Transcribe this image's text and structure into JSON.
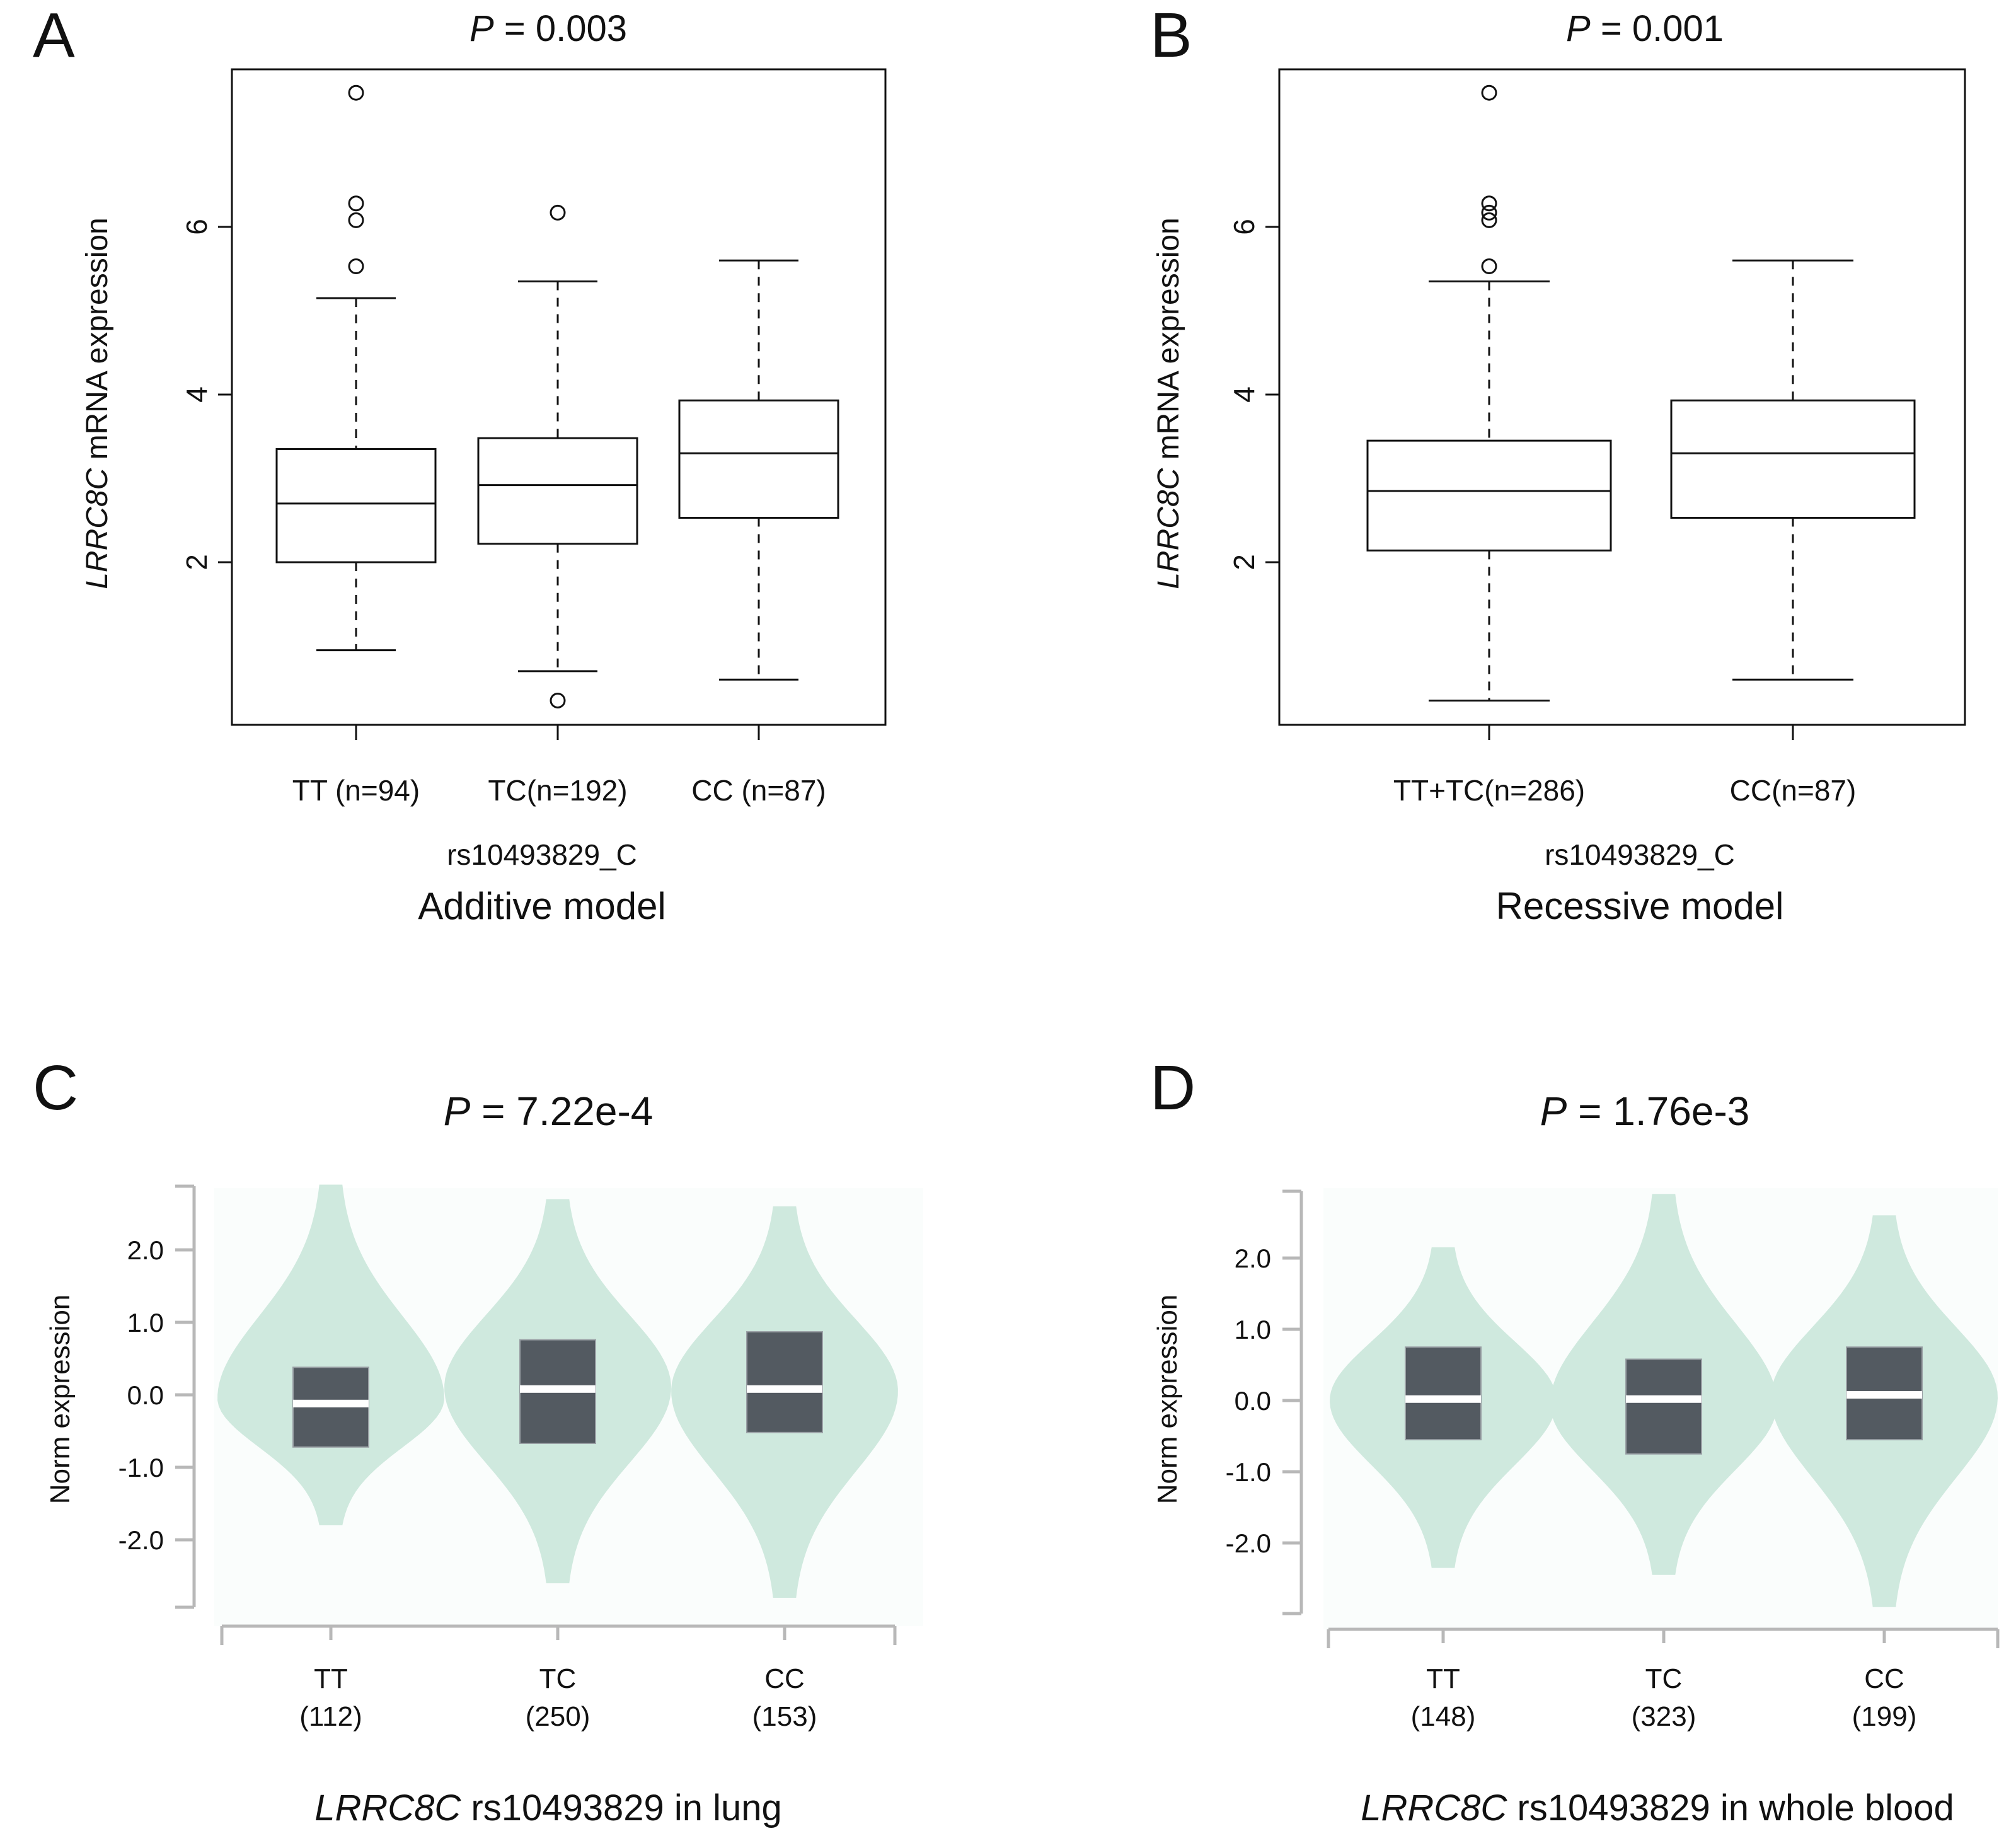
{
  "colors": {
    "violin": "#cfe9de",
    "violin_bg": "#fafdfc",
    "gtex_box": "#535a61",
    "gtex_axis": "#b8b8b8"
  },
  "chart_data": [
    {
      "panel": "A",
      "type": "boxplot",
      "title_p": "P",
      "title_value": " = 0.003",
      "ylabel_gene": "LRRC8C",
      "ylabel_rest": " mRNA expression",
      "xlabel": "rs10493829_C",
      "model": "Additive model",
      "ylim": [
        0.0,
        7.8
      ],
      "yticks": [
        2,
        4,
        6
      ],
      "categories": [
        "TT (n=94)",
        "TC(n=192)",
        "CC (n=87)"
      ],
      "boxes": [
        {
          "whisker_low": 0.95,
          "q1": 2.0,
          "median": 2.7,
          "q3": 3.35,
          "whisker_high": 5.15,
          "outliers": [
            5.53,
            6.08,
            6.28,
            7.6
          ]
        },
        {
          "whisker_low": 0.7,
          "q1": 2.22,
          "median": 2.92,
          "q3": 3.48,
          "whisker_high": 5.35,
          "outliers": [
            0.35,
            6.17
          ]
        },
        {
          "whisker_low": 0.6,
          "q1": 2.53,
          "median": 3.3,
          "q3": 3.93,
          "whisker_high": 5.6,
          "outliers": []
        }
      ]
    },
    {
      "panel": "B",
      "type": "boxplot",
      "title_p": "P",
      "title_value": " = 0.001",
      "ylabel_gene": "LRRC8C",
      "ylabel_rest": " mRNA expression",
      "xlabel": "rs10493829_C",
      "model": "Recessive model",
      "ylim": [
        0.0,
        7.8
      ],
      "yticks": [
        2,
        4,
        6
      ],
      "categories": [
        "TT+TC(n=286)",
        "CC(n=87)"
      ],
      "boxes": [
        {
          "whisker_low": 0.35,
          "q1": 2.14,
          "median": 2.85,
          "q3": 3.45,
          "whisker_high": 5.35,
          "outliers": [
            5.53,
            6.08,
            6.17,
            6.28,
            7.6
          ]
        },
        {
          "whisker_low": 0.6,
          "q1": 2.53,
          "median": 3.3,
          "q3": 3.93,
          "whisker_high": 5.6,
          "outliers": []
        }
      ]
    },
    {
      "panel": "C",
      "type": "violin",
      "title_p": "P",
      "title_value": " = 7.22e-4",
      "ylabel": "Norm expression",
      "ylim": [
        -2.9,
        2.9
      ],
      "yticks": [
        "2.0",
        "1.0",
        "0.0",
        "-1.0",
        "-2.0"
      ],
      "caption_gene": "LRRC8C",
      "caption_rest": " rs10493829 in lung",
      "groups": [
        {
          "genotype": "TT",
          "n": "(112)",
          "min": -1.8,
          "max": 2.9,
          "mode": -0.05,
          "max_width": 1.0,
          "q1": -0.72,
          "median": -0.12,
          "q3": 0.38
        },
        {
          "genotype": "TC",
          "n": "(250)",
          "min": -2.6,
          "max": 2.7,
          "mode": 0.1,
          "max_width": 1.0,
          "q1": -0.67,
          "median": 0.08,
          "q3": 0.76
        },
        {
          "genotype": "CC",
          "n": "(153)",
          "min": -2.8,
          "max": 2.6,
          "mode": 0.05,
          "max_width": 1.0,
          "q1": -0.52,
          "median": 0.08,
          "q3": 0.87
        }
      ]
    },
    {
      "panel": "D",
      "type": "violin",
      "title_p": "P",
      "title_value": " = 1.76e-3",
      "ylabel": "Norm expression",
      "ylim": [
        -2.9,
        2.9
      ],
      "yticks": [
        "2.0",
        "1.0",
        "0.0",
        "-1.0",
        "-2.0"
      ],
      "caption_gene": "LRRC8C",
      "caption_rest": " rs10493829  in whole blood",
      "groups": [
        {
          "genotype": "TT",
          "n": "(148)",
          "min": -2.35,
          "max": 2.15,
          "mode": 0.0,
          "max_width": 1.0,
          "q1": -0.55,
          "median": 0.02,
          "q3": 0.75
        },
        {
          "genotype": "TC",
          "n": "(323)",
          "min": -2.45,
          "max": 2.9,
          "mode": -0.05,
          "max_width": 1.0,
          "q1": -0.75,
          "median": 0.02,
          "q3": 0.58
        },
        {
          "genotype": "CC",
          "n": "(199)",
          "min": -2.9,
          "max": 2.6,
          "mode": 0.05,
          "max_width": 1.0,
          "q1": -0.55,
          "median": 0.08,
          "q3": 0.75
        }
      ]
    }
  ]
}
